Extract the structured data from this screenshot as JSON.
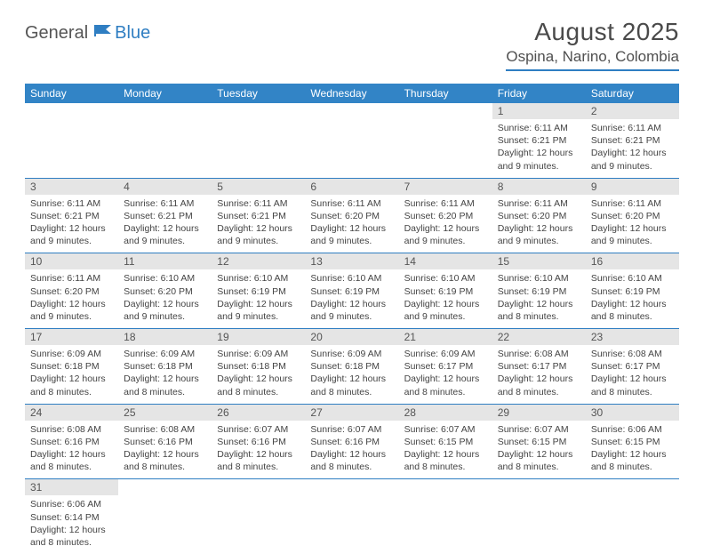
{
  "brand": {
    "part1": "General",
    "part2": "Blue"
  },
  "title": "August 2025",
  "location": "Ospina, Narino, Colombia",
  "colors": {
    "header_bg": "#3284c6",
    "header_text": "#ffffff",
    "daynum_bg": "#e5e5e5",
    "rule": "#2f7ec2",
    "body_text": "#444444"
  },
  "weekdays": [
    "Sunday",
    "Monday",
    "Tuesday",
    "Wednesday",
    "Thursday",
    "Friday",
    "Saturday"
  ],
  "weeks": [
    [
      null,
      null,
      null,
      null,
      null,
      {
        "n": "1",
        "sr": "6:11 AM",
        "ss": "6:21 PM",
        "dl": "12 hours and 9 minutes."
      },
      {
        "n": "2",
        "sr": "6:11 AM",
        "ss": "6:21 PM",
        "dl": "12 hours and 9 minutes."
      }
    ],
    [
      {
        "n": "3",
        "sr": "6:11 AM",
        "ss": "6:21 PM",
        "dl": "12 hours and 9 minutes."
      },
      {
        "n": "4",
        "sr": "6:11 AM",
        "ss": "6:21 PM",
        "dl": "12 hours and 9 minutes."
      },
      {
        "n": "5",
        "sr": "6:11 AM",
        "ss": "6:21 PM",
        "dl": "12 hours and 9 minutes."
      },
      {
        "n": "6",
        "sr": "6:11 AM",
        "ss": "6:20 PM",
        "dl": "12 hours and 9 minutes."
      },
      {
        "n": "7",
        "sr": "6:11 AM",
        "ss": "6:20 PM",
        "dl": "12 hours and 9 minutes."
      },
      {
        "n": "8",
        "sr": "6:11 AM",
        "ss": "6:20 PM",
        "dl": "12 hours and 9 minutes."
      },
      {
        "n": "9",
        "sr": "6:11 AM",
        "ss": "6:20 PM",
        "dl": "12 hours and 9 minutes."
      }
    ],
    [
      {
        "n": "10",
        "sr": "6:11 AM",
        "ss": "6:20 PM",
        "dl": "12 hours and 9 minutes."
      },
      {
        "n": "11",
        "sr": "6:10 AM",
        "ss": "6:20 PM",
        "dl": "12 hours and 9 minutes."
      },
      {
        "n": "12",
        "sr": "6:10 AM",
        "ss": "6:19 PM",
        "dl": "12 hours and 9 minutes."
      },
      {
        "n": "13",
        "sr": "6:10 AM",
        "ss": "6:19 PM",
        "dl": "12 hours and 9 minutes."
      },
      {
        "n": "14",
        "sr": "6:10 AM",
        "ss": "6:19 PM",
        "dl": "12 hours and 9 minutes."
      },
      {
        "n": "15",
        "sr": "6:10 AM",
        "ss": "6:19 PM",
        "dl": "12 hours and 8 minutes."
      },
      {
        "n": "16",
        "sr": "6:10 AM",
        "ss": "6:19 PM",
        "dl": "12 hours and 8 minutes."
      }
    ],
    [
      {
        "n": "17",
        "sr": "6:09 AM",
        "ss": "6:18 PM",
        "dl": "12 hours and 8 minutes."
      },
      {
        "n": "18",
        "sr": "6:09 AM",
        "ss": "6:18 PM",
        "dl": "12 hours and 8 minutes."
      },
      {
        "n": "19",
        "sr": "6:09 AM",
        "ss": "6:18 PM",
        "dl": "12 hours and 8 minutes."
      },
      {
        "n": "20",
        "sr": "6:09 AM",
        "ss": "6:18 PM",
        "dl": "12 hours and 8 minutes."
      },
      {
        "n": "21",
        "sr": "6:09 AM",
        "ss": "6:17 PM",
        "dl": "12 hours and 8 minutes."
      },
      {
        "n": "22",
        "sr": "6:08 AM",
        "ss": "6:17 PM",
        "dl": "12 hours and 8 minutes."
      },
      {
        "n": "23",
        "sr": "6:08 AM",
        "ss": "6:17 PM",
        "dl": "12 hours and 8 minutes."
      }
    ],
    [
      {
        "n": "24",
        "sr": "6:08 AM",
        "ss": "6:16 PM",
        "dl": "12 hours and 8 minutes."
      },
      {
        "n": "25",
        "sr": "6:08 AM",
        "ss": "6:16 PM",
        "dl": "12 hours and 8 minutes."
      },
      {
        "n": "26",
        "sr": "6:07 AM",
        "ss": "6:16 PM",
        "dl": "12 hours and 8 minutes."
      },
      {
        "n": "27",
        "sr": "6:07 AM",
        "ss": "6:16 PM",
        "dl": "12 hours and 8 minutes."
      },
      {
        "n": "28",
        "sr": "6:07 AM",
        "ss": "6:15 PM",
        "dl": "12 hours and 8 minutes."
      },
      {
        "n": "29",
        "sr": "6:07 AM",
        "ss": "6:15 PM",
        "dl": "12 hours and 8 minutes."
      },
      {
        "n": "30",
        "sr": "6:06 AM",
        "ss": "6:15 PM",
        "dl": "12 hours and 8 minutes."
      }
    ],
    [
      {
        "n": "31",
        "sr": "6:06 AM",
        "ss": "6:14 PM",
        "dl": "12 hours and 8 minutes."
      },
      null,
      null,
      null,
      null,
      null,
      null
    ]
  ],
  "labels": {
    "sunrise": "Sunrise: ",
    "sunset": "Sunset: ",
    "daylight": "Daylight: "
  }
}
